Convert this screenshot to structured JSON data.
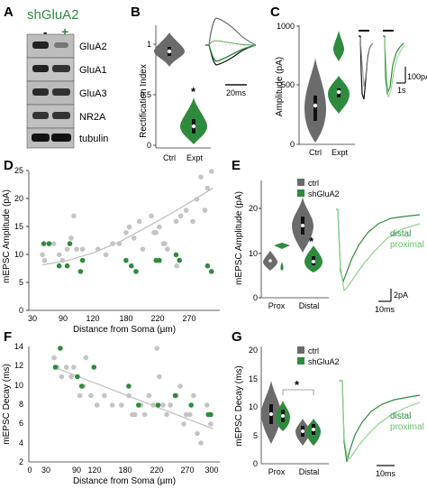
{
  "panels": {
    "A": {
      "letter": "A",
      "title": "shGluA2",
      "lane_minus": "-",
      "lane_plus": "+",
      "bands": [
        "GluA2",
        "GluA1",
        "GluA3",
        "NR2A",
        "tubulin"
      ],
      "accent": "#2e8b3e"
    },
    "B": {
      "letter": "B",
      "ylabel": "Rectification Index",
      "ticks": [
        "0",
        "0.5",
        "1"
      ],
      "categories": [
        "Ctrl",
        "Expt"
      ],
      "star": "*",
      "scale_label": "20ms"
    },
    "C": {
      "letter": "C",
      "ylabel": "Amplitude (pA)",
      "ticks": [
        "0",
        "500",
        "1000"
      ],
      "categories": [
        "Ctrl",
        "Expt"
      ],
      "scale_amp": "100pA",
      "scale_time": "1s"
    },
    "D": {
      "letter": "D",
      "ylabel": "mEPSC Amplitude (pA)",
      "xlabel": "Distance from Soma (µm)",
      "yticks": [
        "0",
        "5",
        "10",
        "15",
        "20",
        "25"
      ],
      "xticks": [
        "30",
        "90",
        "120",
        "180",
        "220",
        "270"
      ]
    },
    "E": {
      "letter": "E",
      "ylabel": "mEPSC Amplitude (pA)",
      "yticks": [
        "0",
        "10",
        "20"
      ],
      "categories": [
        "Prox",
        "Distal"
      ],
      "legend": [
        "ctrl",
        "shGluA2"
      ],
      "star": "*",
      "trace_labels": [
        "distal",
        "proximal"
      ],
      "scale_amp": "2pA",
      "scale_time": "10ms"
    },
    "F": {
      "letter": "F",
      "ylabel": "mEPSC Decay (ms)",
      "xlabel": "Distance from Soma (µm)",
      "yticks": [
        "2",
        "4",
        "6",
        "8",
        "10",
        "12",
        "14"
      ],
      "xticks": [
        "0",
        "30",
        "90",
        "120",
        "180",
        "220",
        "270",
        "300"
      ]
    },
    "G": {
      "letter": "G",
      "ylabel": "mEPSC Decay (ms)",
      "yticks": [
        "0",
        "5",
        "10",
        "15",
        "20"
      ],
      "categories": [
        "Prox",
        "Distal"
      ],
      "legend": [
        "ctrl",
        "shGluA2"
      ],
      "star": "*",
      "trace_labels": [
        "distal",
        "proximal"
      ],
      "scale_time": "10ms"
    }
  },
  "colors": {
    "ctrl": "#6b6b6b",
    "ctrl_point": "#c4c4c4",
    "sh": "#2e8b3e",
    "sh_light": "#8fd08a",
    "axis": "#333333"
  },
  "chart_data": [
    {
      "type": "scatter",
      "panel": "D",
      "ylabel": "mEPSC Amplitude (pA)",
      "xlabel": "Distance from Soma (µm)",
      "ylim": [
        0,
        25
      ],
      "series": [
        {
          "name": "ctrl",
          "points": [
            [
              45,
              10
            ],
            [
              48,
              9
            ],
            [
              62,
              12
            ],
            [
              70,
              10
            ],
            [
              75,
              9
            ],
            [
              82,
              11
            ],
            [
              88,
              13
            ],
            [
              92,
              17
            ],
            [
              96,
              11
            ],
            [
              105,
              11
            ],
            [
              128,
              11
            ],
            [
              140,
              10
            ],
            [
              150,
              12
            ],
            [
              160,
              12
            ],
            [
              170,
              14
            ],
            [
              175,
              15
            ],
            [
              182,
              13
            ],
            [
              190,
              16
            ],
            [
              195,
              11
            ],
            [
              208,
              17
            ],
            [
              212,
              14
            ],
            [
              215,
              14
            ],
            [
              220,
              15
            ],
            [
              228,
              12
            ],
            [
              232,
              11
            ],
            [
              245,
              16
            ],
            [
              252,
              17
            ],
            [
              260,
              18
            ],
            [
              270,
              16
            ],
            [
              276,
              20
            ],
            [
              282,
              24
            ],
            [
              288,
              18
            ],
            [
              292,
              22
            ],
            [
              298,
              25
            ],
            [
              246,
              8
            ],
            [
              226,
              12
            ]
          ]
        },
        {
          "name": "shGluA2",
          "points": [
            [
              47,
              12
            ],
            [
              55,
              12
            ],
            [
              70,
              8
            ],
            [
              82,
              8
            ],
            [
              86,
              12
            ],
            [
              102,
              7
            ],
            [
              105,
              9
            ],
            [
              170,
              9
            ],
            [
              178,
              8
            ],
            [
              185,
              7
            ],
            [
              215,
              9
            ],
            [
              220,
              9
            ],
            [
              245,
              10
            ],
            [
              250,
              9
            ],
            [
              292,
              8
            ],
            [
              298,
              7
            ]
          ]
        }
      ],
      "fit": [
        [
          45,
          8.2
        ],
        [
          80,
          8.9
        ],
        [
          120,
          10.3
        ],
        [
          160,
          12.3
        ],
        [
          200,
          14.9
        ],
        [
          240,
          17.6
        ],
        [
          280,
          20.5
        ],
        [
          300,
          22
        ]
      ]
    },
    {
      "type": "scatter",
      "panel": "F",
      "ylabel": "mEPSC Decay (ms)",
      "xlabel": "Distance from Soma (µm)",
      "ylim": [
        2,
        14
      ],
      "series": [
        {
          "name": "ctrl",
          "points": [
            [
              40,
              13
            ],
            [
              45,
              12
            ],
            [
              52,
              11
            ],
            [
              60,
              12
            ],
            [
              68,
              11
            ],
            [
              72,
              12
            ],
            [
              82,
              9
            ],
            [
              88,
              10
            ],
            [
              92,
              13
            ],
            [
              100,
              9
            ],
            [
              110,
              8
            ],
            [
              122,
              9
            ],
            [
              135,
              8
            ],
            [
              150,
              8
            ],
            [
              162,
              9
            ],
            [
              168,
              7
            ],
            [
              172,
              7
            ],
            [
              182,
              8
            ],
            [
              188,
              7
            ],
            [
              195,
              9
            ],
            [
              202,
              8
            ],
            [
              208,
              14
            ],
            [
              212,
              11
            ],
            [
              218,
              8
            ],
            [
              224,
              7
            ],
            [
              230,
              8
            ],
            [
              240,
              9
            ],
            [
              246,
              10
            ],
            [
              252,
              6
            ],
            [
              256,
              7
            ],
            [
              262,
              7
            ],
            [
              268,
              9
            ],
            [
              274,
              5
            ],
            [
              280,
              4
            ],
            [
              290,
              8
            ],
            [
              296,
              6
            ]
          ]
        },
        {
          "name": "shGluA2",
          "points": [
            [
              42,
              12
            ],
            [
              50,
              14
            ],
            [
              78,
              11
            ],
            [
              85,
              10
            ],
            [
              105,
              12
            ],
            [
              162,
              10
            ],
            [
              178,
              8
            ],
            [
              210,
              8
            ],
            [
              238,
              9
            ],
            [
              264,
              8
            ],
            [
              292,
              7
            ],
            [
              296,
              7
            ]
          ]
        }
      ],
      "fit": [
        [
          40,
          12
        ],
        [
          300,
          5.5
        ]
      ]
    },
    {
      "type": "bar",
      "panel": "B",
      "ylabel": "Rectification Index",
      "categories": [
        "Ctrl",
        "Expt"
      ],
      "series": [
        {
          "name": "median",
          "values": [
            0.92,
            0.15
          ]
        }
      ],
      "ylim": [
        0,
        1.2
      ]
    },
    {
      "type": "bar",
      "panel": "C",
      "ylabel": "Amplitude (pA)",
      "categories": [
        "Ctrl",
        "Expt"
      ],
      "series": [
        {
          "name": "median",
          "values": [
            330,
            380
          ]
        }
      ],
      "ylim": [
        0,
        1000
      ]
    },
    {
      "type": "bar",
      "panel": "E",
      "ylabel": "mEPSC Amplitude (pA)",
      "categories": [
        "Prox",
        "Distal"
      ],
      "series": [
        {
          "name": "ctrl",
          "values": [
            8.5,
            17.5
          ]
        },
        {
          "name": "shGluA2",
          "values": [
            11.5,
            8.0
          ]
        }
      ],
      "ylim": [
        0,
        25
      ]
    },
    {
      "type": "bar",
      "panel": "G",
      "ylabel": "mEPSC Decay (ms)",
      "categories": [
        "Prox",
        "Distal"
      ],
      "series": [
        {
          "name": "ctrl",
          "values": [
            11.8,
            7.0
          ]
        },
        {
          "name": "shGluA2",
          "values": [
            11.2,
            7.8
          ]
        }
      ],
      "ylim": [
        0,
        20
      ]
    }
  ]
}
